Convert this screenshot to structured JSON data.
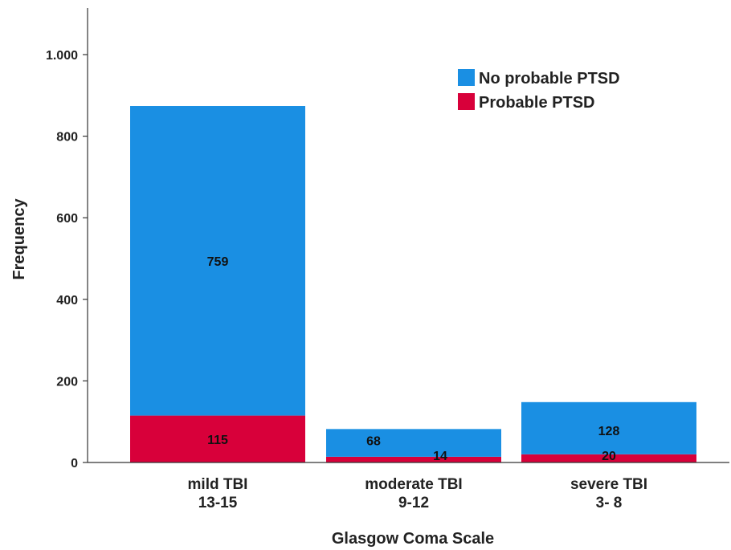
{
  "chart_data": {
    "type": "bar",
    "stacked": true,
    "xlabel": "Glasgow Coma Scale",
    "ylabel": "Frequency",
    "ylim": [
      0,
      1100
    ],
    "yticks": [
      0,
      200,
      400,
      600,
      800,
      1000
    ],
    "ytick_labels": [
      "0",
      "200",
      "400",
      "600",
      "800",
      "1.000"
    ],
    "categories": [
      [
        "mild TBI",
        "13-15"
      ],
      [
        "moderate TBI",
        "9-12"
      ],
      [
        "severe TBI",
        "3- 8"
      ]
    ],
    "series": [
      {
        "name": "Probable PTSD",
        "values": [
          115,
          14,
          20
        ],
        "color": "#d8003a"
      },
      {
        "name": "No probable PTSD",
        "values": [
          759,
          68,
          128
        ],
        "color": "#1a8fe3"
      }
    ],
    "data_labels": {
      "Probable PTSD": [
        "115",
        "14",
        "20"
      ],
      "No probable PTSD": [
        "759",
        "68",
        "128"
      ]
    },
    "legend": {
      "position": "top-right",
      "entries": [
        {
          "name": "No probable PTSD",
          "color": "#1a8fe3"
        },
        {
          "name": "Probable PTSD",
          "color": "#d8003a"
        }
      ]
    },
    "grid": false
  }
}
